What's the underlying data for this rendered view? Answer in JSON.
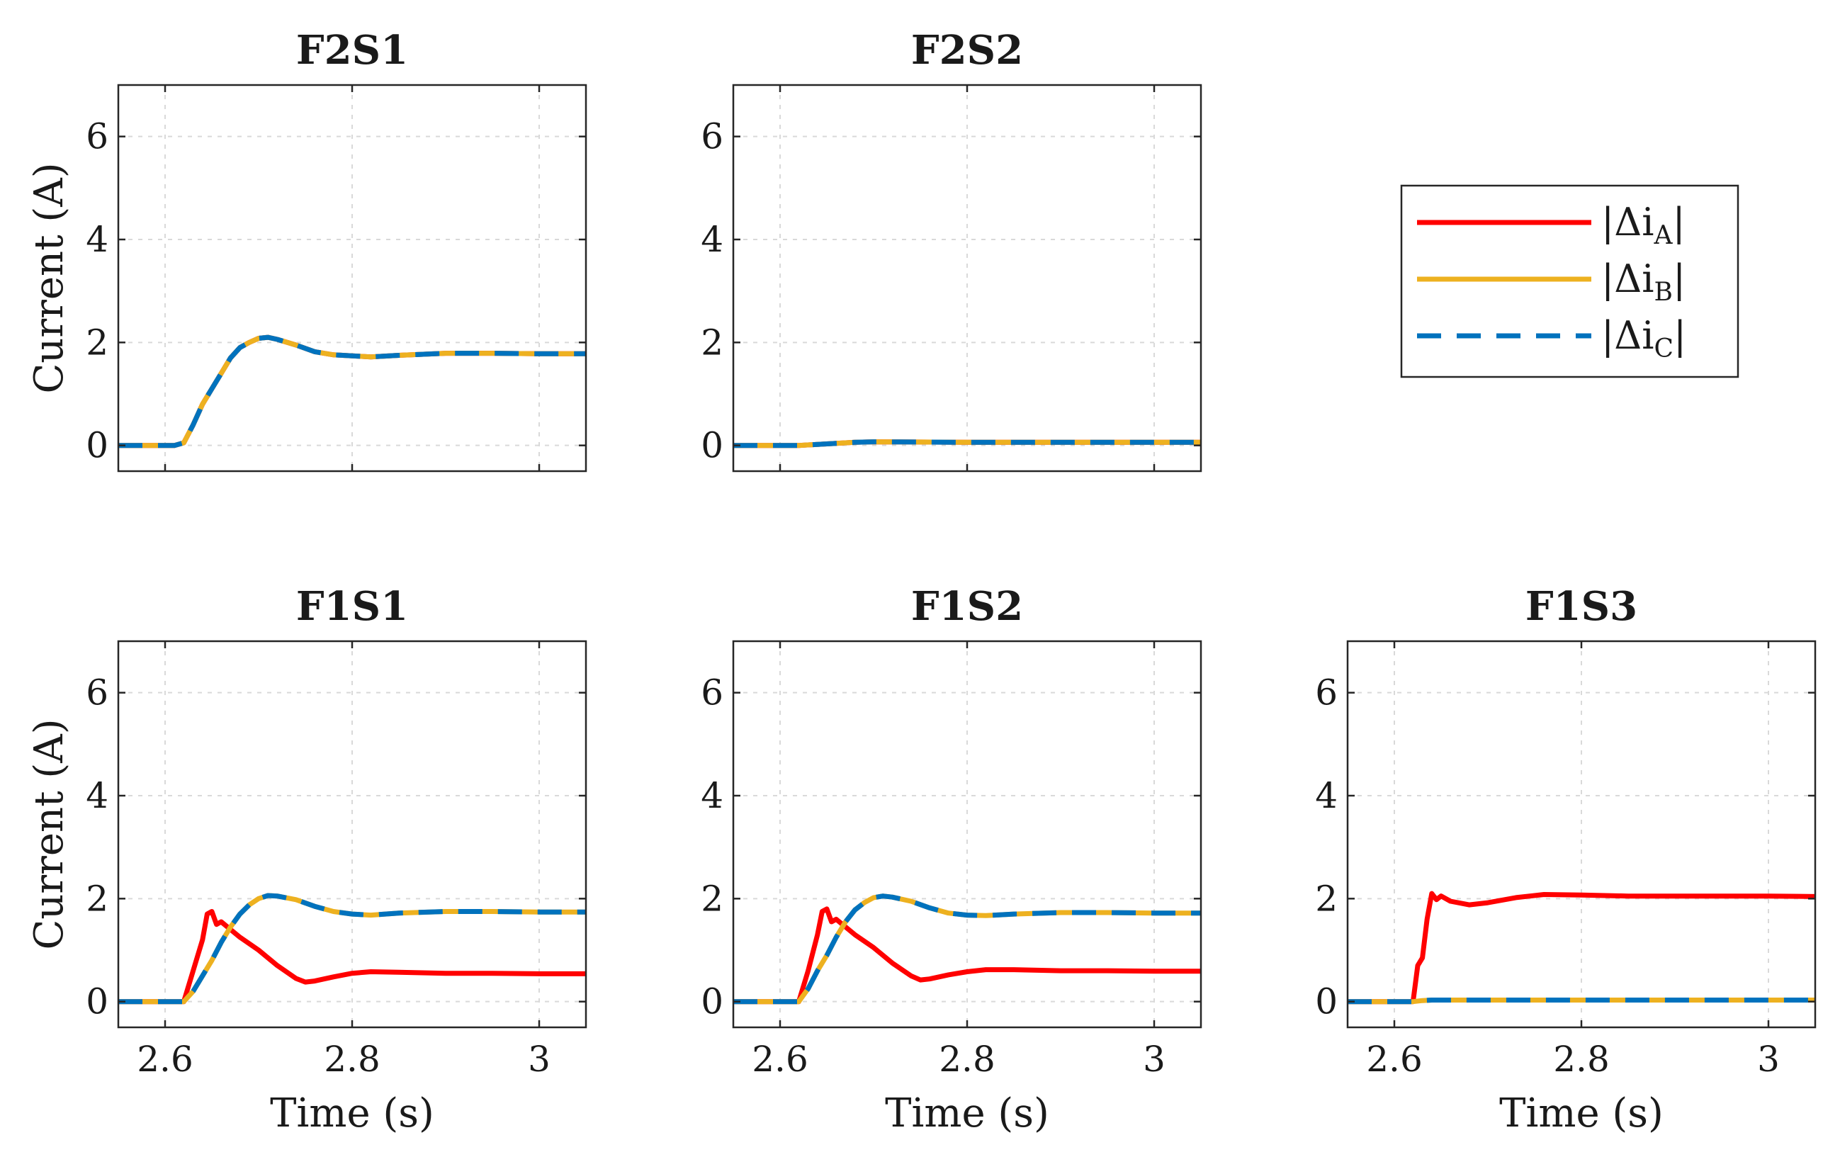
{
  "chart_data": {
    "type": "line",
    "layout": "2x3 grid of panels with a shared legend in the upper-right slot",
    "x_range": [
      2.55,
      3.05
    ],
    "y_range": [
      -0.5,
      7
    ],
    "x_ticks": [
      2.6,
      2.8,
      3.0
    ],
    "x_tick_labels": [
      "2.6",
      "2.8",
      "3"
    ],
    "y_ticks": [
      0,
      2,
      4,
      6
    ],
    "y_tick_labels": [
      "0",
      "2",
      "4",
      "6"
    ],
    "xlabel": "Time (s)",
    "ylabel": "Current (A)",
    "grid": true,
    "legend": {
      "position": "upper-right",
      "entries": [
        {
          "prefix": "|Δi",
          "sub": "A",
          "suffix": "|",
          "color": "#ff0000",
          "style": "solid"
        },
        {
          "prefix": "|Δi",
          "sub": "B",
          "suffix": "|",
          "color": "#edb120",
          "style": "solid"
        },
        {
          "prefix": "|Δi",
          "sub": "C",
          "suffix": "|",
          "color": "#0072bd",
          "style": "dashed"
        }
      ]
    },
    "panels": [
      {
        "title": "F2S1",
        "row": 0,
        "col": 0,
        "show_ylabel": true,
        "show_xticklabels": false,
        "show_xlabel": false,
        "series": [
          {
            "name": "|Δi_A|",
            "color": "#ff0000",
            "x": [
              2.55,
              2.61,
              2.62,
              2.63,
              2.64,
              2.65,
              2.66,
              2.67,
              2.68,
              2.69,
              2.7,
              2.71,
              2.72,
              2.74,
              2.76,
              2.78,
              2.8,
              2.82,
              2.85,
              2.9,
              2.95,
              3.0,
              3.05
            ],
            "y": [
              0,
              0,
              0.05,
              0.4,
              0.8,
              1.1,
              1.4,
              1.7,
              1.9,
              2.0,
              2.08,
              2.1,
              2.06,
              1.95,
              1.82,
              1.76,
              1.74,
              1.72,
              1.75,
              1.79,
              1.79,
              1.78,
              1.78
            ]
          },
          {
            "name": "|Δi_B|",
            "color": "#edb120",
            "x": [
              2.55,
              2.61,
              2.62,
              2.63,
              2.64,
              2.65,
              2.66,
              2.67,
              2.68,
              2.69,
              2.7,
              2.71,
              2.72,
              2.74,
              2.76,
              2.78,
              2.8,
              2.82,
              2.85,
              2.9,
              2.95,
              3.0,
              3.05
            ],
            "y": [
              0,
              0,
              0.05,
              0.4,
              0.8,
              1.1,
              1.4,
              1.7,
              1.9,
              2.0,
              2.08,
              2.1,
              2.06,
              1.95,
              1.82,
              1.76,
              1.74,
              1.72,
              1.75,
              1.79,
              1.79,
              1.78,
              1.78
            ]
          },
          {
            "name": "|Δi_C|",
            "color": "#0072bd",
            "dashed": true,
            "x": [
              2.55,
              2.61,
              2.62,
              2.63,
              2.64,
              2.65,
              2.66,
              2.67,
              2.68,
              2.69,
              2.7,
              2.71,
              2.72,
              2.74,
              2.76,
              2.78,
              2.8,
              2.82,
              2.85,
              2.9,
              2.95,
              3.0,
              3.05
            ],
            "y": [
              0,
              0,
              0.05,
              0.4,
              0.8,
              1.1,
              1.4,
              1.7,
              1.9,
              2.0,
              2.08,
              2.1,
              2.06,
              1.95,
              1.82,
              1.76,
              1.74,
              1.72,
              1.75,
              1.79,
              1.79,
              1.78,
              1.78
            ]
          }
        ]
      },
      {
        "title": "F2S2",
        "row": 0,
        "col": 1,
        "show_ylabel": false,
        "show_xticklabels": false,
        "show_xlabel": false,
        "series": [
          {
            "name": "|Δi_A|",
            "color": "#ff0000",
            "x": [
              2.55,
              2.62,
              2.65,
              2.68,
              2.7,
              2.8,
              2.9,
              3.0,
              3.05
            ],
            "y": [
              0,
              0,
              0.03,
              0.06,
              0.07,
              0.06,
              0.06,
              0.06,
              0.06
            ]
          },
          {
            "name": "|Δi_B|",
            "color": "#edb120",
            "x": [
              2.55,
              2.62,
              2.65,
              2.68,
              2.7,
              2.8,
              2.9,
              3.0,
              3.05
            ],
            "y": [
              0,
              0,
              0.03,
              0.06,
              0.07,
              0.06,
              0.06,
              0.06,
              0.06
            ]
          },
          {
            "name": "|Δi_C|",
            "color": "#0072bd",
            "dashed": true,
            "x": [
              2.55,
              2.62,
              2.65,
              2.68,
              2.7,
              2.8,
              2.9,
              3.0,
              3.05
            ],
            "y": [
              0,
              0,
              0.03,
              0.06,
              0.07,
              0.06,
              0.06,
              0.06,
              0.06
            ]
          }
        ]
      },
      {
        "title": "F1S1",
        "row": 1,
        "col": 0,
        "show_ylabel": true,
        "show_xticklabels": true,
        "show_xlabel": true,
        "series": [
          {
            "name": "|Δi_A|",
            "color": "#ff0000",
            "x": [
              2.55,
              2.62,
              2.63,
              2.64,
              2.645,
              2.65,
              2.655,
              2.66,
              2.67,
              2.68,
              2.7,
              2.72,
              2.74,
              2.75,
              2.76,
              2.78,
              2.8,
              2.82,
              2.85,
              2.9,
              2.95,
              3.0,
              3.05
            ],
            "y": [
              0,
              0,
              0.6,
              1.2,
              1.7,
              1.75,
              1.5,
              1.55,
              1.4,
              1.25,
              1.0,
              0.7,
              0.45,
              0.38,
              0.4,
              0.48,
              0.55,
              0.58,
              0.57,
              0.55,
              0.55,
              0.54,
              0.54
            ]
          },
          {
            "name": "|Δi_B|",
            "color": "#edb120",
            "x": [
              2.55,
              2.62,
              2.63,
              2.64,
              2.65,
              2.66,
              2.67,
              2.68,
              2.69,
              2.7,
              2.71,
              2.72,
              2.74,
              2.76,
              2.78,
              2.8,
              2.82,
              2.85,
              2.9,
              2.95,
              3.0,
              3.05
            ],
            "y": [
              0,
              0,
              0.2,
              0.5,
              0.8,
              1.15,
              1.45,
              1.7,
              1.88,
              2.0,
              2.06,
              2.05,
              1.98,
              1.85,
              1.75,
              1.7,
              1.68,
              1.72,
              1.75,
              1.75,
              1.74,
              1.74
            ]
          },
          {
            "name": "|Δi_C|",
            "color": "#0072bd",
            "dashed": true,
            "x": [
              2.55,
              2.62,
              2.63,
              2.64,
              2.65,
              2.66,
              2.67,
              2.68,
              2.69,
              2.7,
              2.71,
              2.72,
              2.74,
              2.76,
              2.78,
              2.8,
              2.82,
              2.85,
              2.9,
              2.95,
              3.0,
              3.05
            ],
            "y": [
              0,
              0,
              0.2,
              0.5,
              0.8,
              1.15,
              1.45,
              1.7,
              1.88,
              2.0,
              2.06,
              2.05,
              1.98,
              1.85,
              1.75,
              1.7,
              1.68,
              1.72,
              1.75,
              1.75,
              1.74,
              1.74
            ]
          }
        ]
      },
      {
        "title": "F1S2",
        "row": 1,
        "col": 1,
        "show_ylabel": false,
        "show_xticklabels": true,
        "show_xlabel": true,
        "series": [
          {
            "name": "|Δi_A|",
            "color": "#ff0000",
            "x": [
              2.55,
              2.62,
              2.63,
              2.64,
              2.645,
              2.65,
              2.655,
              2.66,
              2.67,
              2.68,
              2.7,
              2.72,
              2.74,
              2.75,
              2.76,
              2.78,
              2.8,
              2.82,
              2.85,
              2.9,
              2.95,
              3.0,
              3.05
            ],
            "y": [
              0,
              0,
              0.6,
              1.3,
              1.75,
              1.8,
              1.55,
              1.6,
              1.45,
              1.3,
              1.05,
              0.75,
              0.5,
              0.42,
              0.44,
              0.52,
              0.58,
              0.62,
              0.62,
              0.6,
              0.6,
              0.59,
              0.59
            ]
          },
          {
            "name": "|Δi_B|",
            "color": "#edb120",
            "x": [
              2.55,
              2.62,
              2.63,
              2.64,
              2.65,
              2.66,
              2.67,
              2.68,
              2.69,
              2.7,
              2.71,
              2.72,
              2.74,
              2.76,
              2.78,
              2.8,
              2.82,
              2.85,
              2.9,
              2.95,
              3.0,
              3.05
            ],
            "y": [
              0,
              0,
              0.25,
              0.6,
              0.9,
              1.25,
              1.55,
              1.78,
              1.92,
              2.02,
              2.05,
              2.03,
              1.95,
              1.82,
              1.72,
              1.68,
              1.67,
              1.7,
              1.73,
              1.73,
              1.72,
              1.72
            ]
          },
          {
            "name": "|Δi_C|",
            "color": "#0072bd",
            "dashed": true,
            "x": [
              2.55,
              2.62,
              2.63,
              2.64,
              2.65,
              2.66,
              2.67,
              2.68,
              2.69,
              2.7,
              2.71,
              2.72,
              2.74,
              2.76,
              2.78,
              2.8,
              2.82,
              2.85,
              2.9,
              2.95,
              3.0,
              3.05
            ],
            "y": [
              0,
              0,
              0.25,
              0.6,
              0.9,
              1.25,
              1.55,
              1.78,
              1.92,
              2.02,
              2.05,
              2.03,
              1.95,
              1.82,
              1.72,
              1.68,
              1.67,
              1.7,
              1.73,
              1.73,
              1.72,
              1.72
            ]
          }
        ]
      },
      {
        "title": "F1S3",
        "row": 1,
        "col": 2,
        "show_ylabel": false,
        "show_xticklabels": true,
        "show_xlabel": true,
        "series": [
          {
            "name": "|Δi_A|",
            "color": "#ff0000",
            "x": [
              2.55,
              2.62,
              2.625,
              2.63,
              2.635,
              2.64,
              2.645,
              2.65,
              2.66,
              2.68,
              2.7,
              2.73,
              2.76,
              2.8,
              2.85,
              2.9,
              2.95,
              3.0,
              3.05
            ],
            "y": [
              0,
              0,
              0.7,
              0.85,
              1.6,
              2.1,
              1.98,
              2.05,
              1.95,
              1.88,
              1.92,
              2.02,
              2.08,
              2.07,
              2.05,
              2.05,
              2.05,
              2.05,
              2.04
            ]
          },
          {
            "name": "|Δi_B|",
            "color": "#edb120",
            "x": [
              2.55,
              2.62,
              2.63,
              2.64,
              2.7,
              2.8,
              2.9,
              3.0,
              3.05
            ],
            "y": [
              0,
              0,
              0.02,
              0.03,
              0.03,
              0.03,
              0.03,
              0.03,
              0.03
            ]
          },
          {
            "name": "|Δi_C|",
            "color": "#0072bd",
            "dashed": true,
            "x": [
              2.55,
              2.62,
              2.63,
              2.64,
              2.7,
              2.8,
              2.9,
              3.0,
              3.05
            ],
            "y": [
              0,
              0,
              0.02,
              0.03,
              0.03,
              0.03,
              0.03,
              0.03,
              0.03
            ]
          }
        ]
      }
    ]
  }
}
